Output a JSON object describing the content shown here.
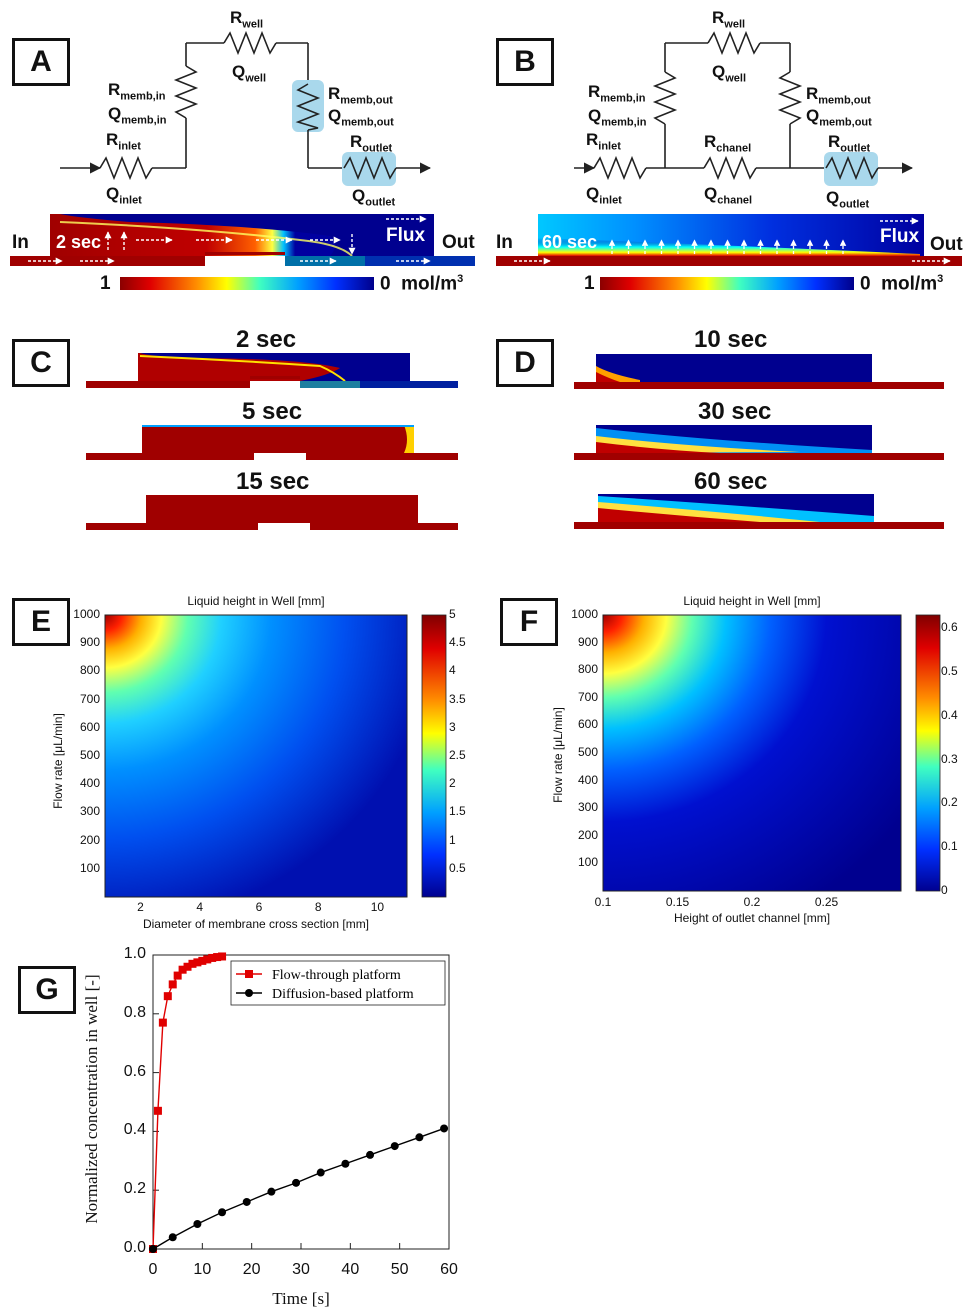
{
  "panels": {
    "A": {
      "label": "A",
      "R_well": "R",
      "R_well_sub": "well",
      "Q_well": "Q",
      "Q_well_sub": "well",
      "R_memb_in": "R",
      "R_memb_in_sub": "memb,in",
      "Q_memb_in": "Q",
      "Q_memb_in_sub": "memb,in",
      "R_memb_out": "R",
      "R_memb_out_sub": "memb,out",
      "Q_memb_out": "Q",
      "Q_memb_out_sub": "memb,out",
      "R_inlet": "R",
      "R_inlet_sub": "inlet",
      "Q_inlet": "Q",
      "Q_inlet_sub": "inlet",
      "R_outlet": "R",
      "R_outlet_sub": "outlet",
      "Q_outlet": "Q",
      "Q_outlet_sub": "outlet",
      "in": "In",
      "out": "Out",
      "time": "2 sec",
      "flux": "Flux",
      "cbar_max": "1",
      "cbar_min": "0",
      "cbar_unit": "mol/m",
      "cbar_unit_sup": "3"
    },
    "B": {
      "label": "B",
      "R_well": "R",
      "R_well_sub": "well",
      "Q_well": "Q",
      "Q_well_sub": "well",
      "R_memb_in": "R",
      "R_memb_in_sub": "memb,in",
      "Q_memb_in": "Q",
      "Q_memb_in_sub": "memb,in",
      "R_memb_out": "R",
      "R_memb_out_sub": "memb,out",
      "Q_memb_out": "Q",
      "Q_memb_out_sub": "memb,out",
      "R_inlet": "R",
      "R_inlet_sub": "inlet",
      "Q_inlet": "Q",
      "Q_inlet_sub": "inlet",
      "R_chanel": "R",
      "R_chanel_sub": "chanel",
      "Q_chanel": "Q",
      "Q_chanel_sub": "chanel",
      "R_outlet": "R",
      "R_outlet_sub": "outlet",
      "Q_outlet": "Q",
      "Q_outlet_sub": "outlet",
      "in": "In",
      "out": "Out",
      "time": "60 sec",
      "flux": "Flux",
      "cbar_max": "1",
      "cbar_min": "0",
      "cbar_unit": "mol/m",
      "cbar_unit_sup": "3"
    },
    "C": {
      "label": "C",
      "times": [
        "2 sec",
        "5 sec",
        "15 sec"
      ]
    },
    "D": {
      "label": "D",
      "times": [
        "10 sec",
        "30 sec",
        "60 sec"
      ]
    },
    "E": {
      "label": "E",
      "title": "Liquid height in Well [mm]",
      "xlabel": "Diameter of membrane cross section [mm]",
      "ylabel": "Flow rate [μL/min]",
      "xticks": [
        "2",
        "4",
        "6",
        "8",
        "10"
      ],
      "yticks": [
        "100",
        "200",
        "300",
        "400",
        "500",
        "600",
        "700",
        "800",
        "900",
        "1000"
      ],
      "cbticks": [
        "0.5",
        "1",
        "1.5",
        "2",
        "2.5",
        "3",
        "3.5",
        "4",
        "4.5",
        "5"
      ]
    },
    "F": {
      "label": "F",
      "title": "Liquid height in Well [mm]",
      "xlabel": "Height of outlet channel [mm]",
      "ylabel": "Flow rate [μL/min]",
      "xticks": [
        "0.1",
        "0.15",
        "0.2",
        "0.25"
      ],
      "yticks": [
        "100",
        "200",
        "300",
        "400",
        "500",
        "600",
        "700",
        "800",
        "900",
        "1000"
      ],
      "cbticks": [
        "0",
        "0.1",
        "0.2",
        "0.3",
        "0.4",
        "0.5",
        "0.6"
      ]
    },
    "G": {
      "label": "G",
      "xlabel": "Time [s]",
      "ylabel": "Normalized concentration in well [-]",
      "xticks": [
        "0",
        "10",
        "20",
        "30",
        "40",
        "50",
        "60"
      ],
      "yticks": [
        "0.0",
        "0.2",
        "0.4",
        "0.6",
        "0.8",
        "1.0"
      ]
    }
  },
  "chart_data": [
    {
      "type": "heatmap",
      "title": "Liquid height in Well [mm]",
      "xlabel": "Diameter of membrane cross section [mm]",
      "ylabel": "Flow rate [μL/min]",
      "xlim": [
        0.8,
        11
      ],
      "ylim": [
        0,
        1000
      ],
      "zlim": [
        0,
        5
      ],
      "colormap": "jet",
      "trend": "height increases with flow rate and decreases with membrane diameter"
    },
    {
      "type": "heatmap",
      "title": "Liquid height in Well [mm]",
      "xlabel": "Height of outlet channel [mm]",
      "ylabel": "Flow rate [μL/min]",
      "xlim": [
        0.1,
        0.3
      ],
      "ylim": [
        0,
        1000
      ],
      "zlim": [
        0,
        0.63
      ],
      "colormap": "jet",
      "trend": "height increases with flow rate and decreases with outlet channel height"
    },
    {
      "type": "line",
      "xlabel": "Time [s]",
      "ylabel": "Normalized concentration in well [-]",
      "xlim": [
        0,
        60
      ],
      "ylim": [
        0,
        1
      ],
      "legend_position": "top-right",
      "series": [
        {
          "name": "Flow-through platform",
          "color": "#e00000",
          "marker": "square",
          "x": [
            0,
            1,
            2,
            3,
            4,
            5,
            6,
            7,
            8,
            9,
            10,
            11,
            12,
            13,
            14
          ],
          "y": [
            0,
            0.47,
            0.77,
            0.86,
            0.9,
            0.93,
            0.95,
            0.96,
            0.97,
            0.975,
            0.98,
            0.985,
            0.99,
            0.993,
            0.995
          ]
        },
        {
          "name": "Diffusion-based platform",
          "color": "#000000",
          "marker": "circle",
          "x": [
            0,
            4,
            9,
            14,
            19,
            24,
            29,
            34,
            39,
            44,
            49,
            54,
            59
          ],
          "y": [
            0,
            0.04,
            0.085,
            0.125,
            0.16,
            0.195,
            0.225,
            0.26,
            0.29,
            0.32,
            0.35,
            0.38,
            0.41
          ]
        }
      ]
    }
  ]
}
